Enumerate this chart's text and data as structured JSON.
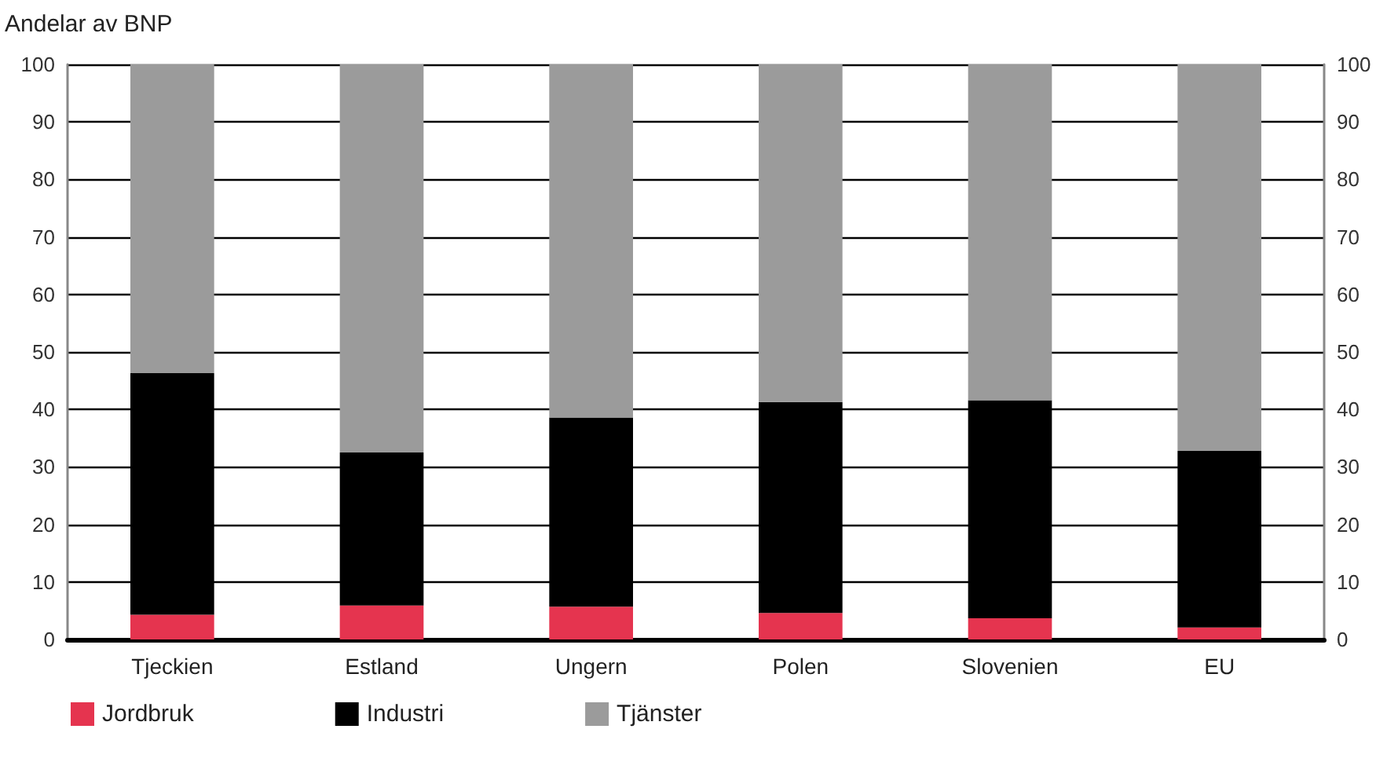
{
  "chart_data": {
    "type": "bar",
    "ylabel": "Andelar av BNP",
    "stacked": true,
    "categories": [
      "Tjeckien",
      "Estland",
      "Ungern",
      "Polen",
      "Slovenien",
      "EU"
    ],
    "series": [
      {
        "name": "Jordbruk",
        "color": "#e5344f",
        "values": [
          4.3,
          5.9,
          5.7,
          4.6,
          3.7,
          2.1
        ]
      },
      {
        "name": "Industri",
        "color": "#000000",
        "values": [
          42.0,
          26.6,
          32.9,
          36.7,
          37.9,
          30.7
        ]
      },
      {
        "name": "Tjänster",
        "color": "#9b9b9b",
        "values": [
          53.7,
          67.5,
          61.4,
          58.7,
          58.4,
          67.2
        ]
      }
    ],
    "ylim": [
      0,
      100
    ],
    "yticks": [
      0,
      10,
      20,
      30,
      40,
      50,
      60,
      70,
      80,
      90,
      100
    ],
    "y2lim": [
      0,
      100
    ],
    "y2ticks": [
      0,
      10,
      20,
      30,
      40,
      50,
      60,
      70,
      80,
      90,
      100
    ],
    "grid": "y",
    "legend": "bottom left"
  }
}
